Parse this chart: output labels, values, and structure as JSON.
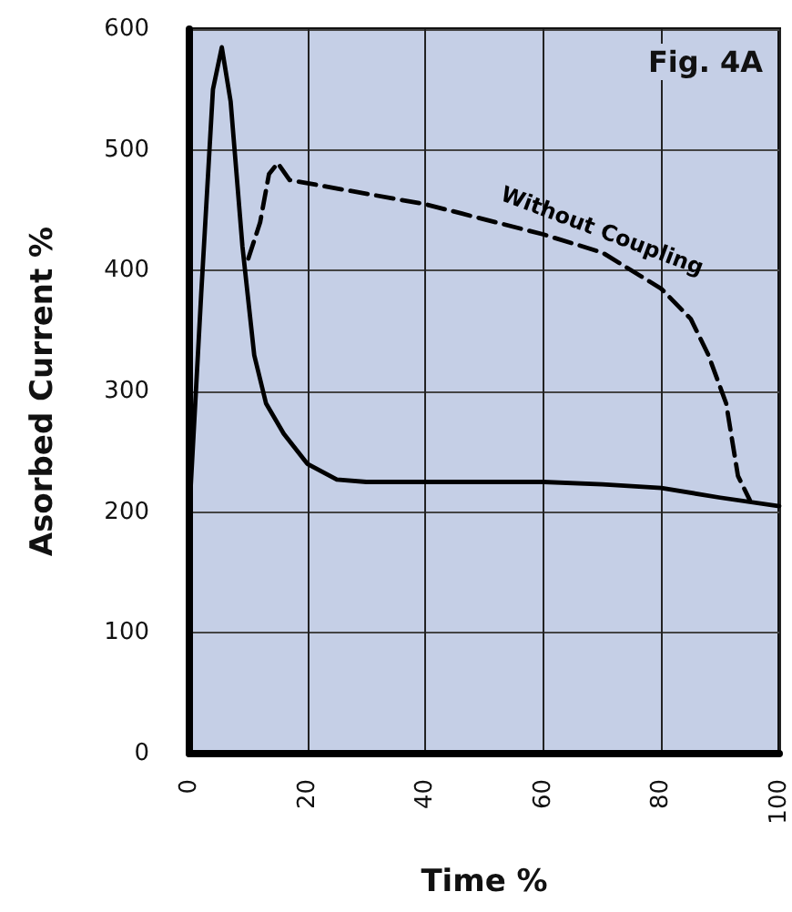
{
  "chart_data": {
    "type": "line",
    "xlabel": "Time %",
    "ylabel": "Asorbed Current %",
    "annotations": [
      "Fig. 4A"
    ],
    "xlim": [
      0,
      100
    ],
    "xticks": [
      0,
      20,
      40,
      60,
      80,
      100
    ],
    "ylim": [
      0,
      600
    ],
    "yticks": [
      0,
      100,
      200,
      300,
      400,
      500,
      600
    ],
    "grid": true,
    "marker": "none",
    "series": [
      {
        "color": "#000000",
        "line_style": "solid",
        "x": [
          0,
          2,
          4,
          5.5,
          7,
          9,
          11,
          13,
          16,
          20,
          25,
          30,
          60,
          70,
          80,
          90,
          100
        ],
        "values": [
          200,
          380,
          550,
          585,
          540,
          420,
          330,
          290,
          265,
          240,
          227,
          225,
          225,
          223,
          220,
          212,
          205
        ]
      },
      {
        "name": "Without Coupling",
        "color": "#000000",
        "line_style": "dashed",
        "x": [
          10,
          12,
          13.5,
          15,
          17,
          40,
          60,
          70,
          80,
          85,
          88,
          91,
          93,
          95
        ],
        "values": [
          410,
          440,
          480,
          489,
          475,
          455,
          430,
          415,
          385,
          360,
          330,
          290,
          230,
          210
        ]
      }
    ]
  }
}
